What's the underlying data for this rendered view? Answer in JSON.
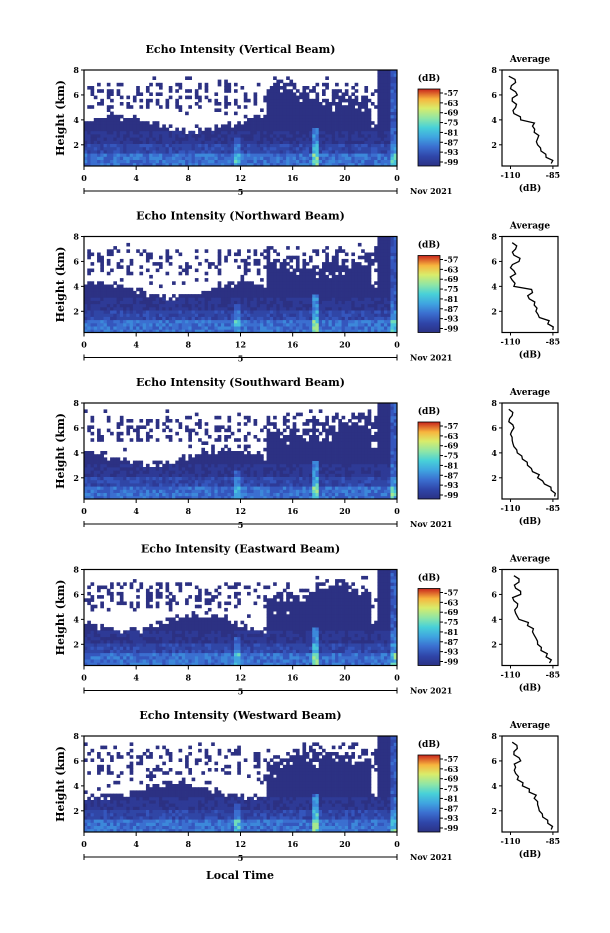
{
  "colors": {
    "background": "#ffffff",
    "colorbar": [
      "#2b3285",
      "#2f45a8",
      "#3b6fd0",
      "#3fa3e0",
      "#48d1d8",
      "#8fe6a6",
      "#d9ec6a",
      "#f7b53e",
      "#ee5a2a",
      "#c8241c"
    ]
  },
  "xlabel": "Local Time",
  "chart_data": [
    {
      "type": "heatmap",
      "title": "Echo Intensity (Vertical Beam)",
      "ylabel": "Height (km)",
      "y_ticks": [
        "2",
        "4",
        "6",
        "8"
      ],
      "x_ticks": [
        "0",
        "4",
        "8",
        "12",
        "16",
        "20",
        "0"
      ],
      "x_sub_label": "5",
      "date_label": "Nov 2021",
      "xlim": [
        0,
        24
      ],
      "ylim": [
        0.3,
        8
      ],
      "colorbar": {
        "unit": "(dB)",
        "levels": [
          "-57",
          "-63",
          "-69",
          "-75",
          "-81",
          "-87",
          "-93",
          "-99"
        ]
      },
      "profile": {
        "title": "Average",
        "xlabel": "(dB)",
        "x_ticks": [
          "-110",
          "-85"
        ],
        "y_ticks": [
          "2",
          "4",
          "6",
          "8"
        ],
        "xlim": [
          -115,
          -82
        ],
        "ylim": [
          0.3,
          8
        ],
        "heights": [
          0.5,
          1.0,
          1.5,
          2.0,
          2.5,
          3.0,
          3.5,
          4.0,
          4.5,
          5.0,
          5.5,
          6.0,
          6.5,
          7.0,
          7.5
        ],
        "values": [
          -86,
          -89,
          -92,
          -94,
          -94,
          -96,
          -97,
          -104,
          -108,
          -107,
          -109,
          -106,
          -110,
          -107,
          -111
        ]
      }
    },
    {
      "type": "heatmap",
      "title": "Echo Intensity (Northward Beam)",
      "ylabel": "Height (km)",
      "y_ticks": [
        "2",
        "4",
        "6",
        "8"
      ],
      "x_ticks": [
        "0",
        "4",
        "8",
        "12",
        "16",
        "20",
        "0"
      ],
      "x_sub_label": "5",
      "date_label": "Nov 2021",
      "xlim": [
        0,
        24
      ],
      "ylim": [
        0.3,
        8
      ],
      "colorbar": {
        "unit": "(dB)",
        "levels": [
          "-57",
          "-63",
          "-69",
          "-75",
          "-81",
          "-87",
          "-93",
          "-99"
        ]
      },
      "profile": {
        "title": "Average",
        "xlabel": "(dB)",
        "x_ticks": [
          "-110",
          "-85"
        ],
        "y_ticks": [
          "2",
          "4",
          "6",
          "8"
        ],
        "xlim": [
          -115,
          -82
        ],
        "ylim": [
          0.3,
          8
        ],
        "heights": [
          0.5,
          1.0,
          1.5,
          2.0,
          2.5,
          3.0,
          3.5,
          4.0,
          4.5,
          5.0,
          5.5,
          6.0,
          6.5,
          7.0,
          7.5
        ],
        "values": [
          -85,
          -88,
          -93,
          -95,
          -96,
          -99,
          -97,
          -108,
          -109,
          -107,
          -110,
          -105,
          -108,
          -107,
          -109
        ]
      }
    },
    {
      "type": "heatmap",
      "title": "Echo Intensity (Southward Beam)",
      "ylabel": "Height (km)",
      "y_ticks": [
        "2",
        "4",
        "6",
        "8"
      ],
      "x_ticks": [
        "0",
        "4",
        "8",
        "12",
        "16",
        "20",
        "0"
      ],
      "x_sub_label": "5",
      "date_label": "Nov 2021",
      "xlim": [
        0,
        24
      ],
      "ylim": [
        0.3,
        8
      ],
      "colorbar": {
        "unit": "(dB)",
        "levels": [
          "-57",
          "-63",
          "-69",
          "-75",
          "-81",
          "-87",
          "-93",
          "-99"
        ]
      },
      "profile": {
        "title": "Average",
        "xlabel": "(dB)",
        "x_ticks": [
          "-110",
          "-85"
        ],
        "y_ticks": [
          "2",
          "4",
          "6",
          "8"
        ],
        "xlim": [
          -115,
          -82
        ],
        "ylim": [
          0.3,
          8
        ],
        "heights": [
          0.5,
          1.0,
          1.5,
          2.0,
          2.5,
          3.0,
          3.5,
          4.0,
          4.5,
          5.0,
          5.5,
          6.0,
          6.5,
          7.0,
          7.5
        ],
        "values": [
          -84,
          -86,
          -90,
          -94,
          -97,
          -100,
          -103,
          -106,
          -108,
          -109,
          -110,
          -108,
          -111,
          -109,
          -111
        ]
      }
    },
    {
      "type": "heatmap",
      "title": "Echo Intensity (Eastward Beam)",
      "ylabel": "Height (km)",
      "y_ticks": [
        "2",
        "4",
        "6",
        "8"
      ],
      "x_ticks": [
        "0",
        "4",
        "8",
        "12",
        "16",
        "20",
        "0"
      ],
      "x_sub_label": "5",
      "date_label": "Nov 2021",
      "xlim": [
        0,
        24
      ],
      "ylim": [
        0.3,
        8
      ],
      "colorbar": {
        "unit": "(dB)",
        "levels": [
          "-57",
          "-63",
          "-69",
          "-75",
          "-81",
          "-87",
          "-93",
          "-99"
        ]
      },
      "profile": {
        "title": "Average",
        "xlabel": "(dB)",
        "x_ticks": [
          "-110",
          "-85"
        ],
        "y_ticks": [
          "2",
          "4",
          "6",
          "8"
        ],
        "xlim": [
          -115,
          -82
        ],
        "ylim": [
          0.3,
          8
        ],
        "heights": [
          0.5,
          1.0,
          1.5,
          2.0,
          2.5,
          3.0,
          3.5,
          4.0,
          4.5,
          5.0,
          5.5,
          6.0,
          6.5,
          7.0,
          7.5
        ],
        "values": [
          -87,
          -89,
          -92,
          -94,
          -95,
          -97,
          -100,
          -105,
          -107,
          -106,
          -108,
          -104,
          -107,
          -105,
          -108
        ]
      }
    },
    {
      "type": "heatmap",
      "title": "Echo Intensity (Westward Beam)",
      "ylabel": "Height (km)",
      "y_ticks": [
        "2",
        "4",
        "6",
        "8"
      ],
      "x_ticks": [
        "0",
        "4",
        "8",
        "12",
        "16",
        "20",
        "0"
      ],
      "x_sub_label": "5",
      "date_label": "Nov 2021",
      "xlim": [
        0,
        24
      ],
      "ylim": [
        0.3,
        8
      ],
      "colorbar": {
        "unit": "(dB)",
        "levels": [
          "-57",
          "-63",
          "-69",
          "-75",
          "-81",
          "-87",
          "-93",
          "-99"
        ]
      },
      "profile": {
        "title": "Average",
        "xlabel": "(dB)",
        "x_ticks": [
          "-110",
          "-85"
        ],
        "y_ticks": [
          "2",
          "4",
          "6",
          "8"
        ],
        "xlim": [
          -115,
          -82
        ],
        "ylim": [
          0.3,
          8
        ],
        "heights": [
          0.5,
          1.0,
          1.5,
          2.0,
          2.5,
          3.0,
          3.5,
          4.0,
          4.5,
          5.0,
          5.5,
          6.0,
          6.5,
          7.0,
          7.5
        ],
        "values": [
          -86,
          -88,
          -91,
          -93,
          -94,
          -96,
          -99,
          -103,
          -106,
          -107,
          -107,
          -104,
          -108,
          -106,
          -109
        ]
      }
    }
  ]
}
